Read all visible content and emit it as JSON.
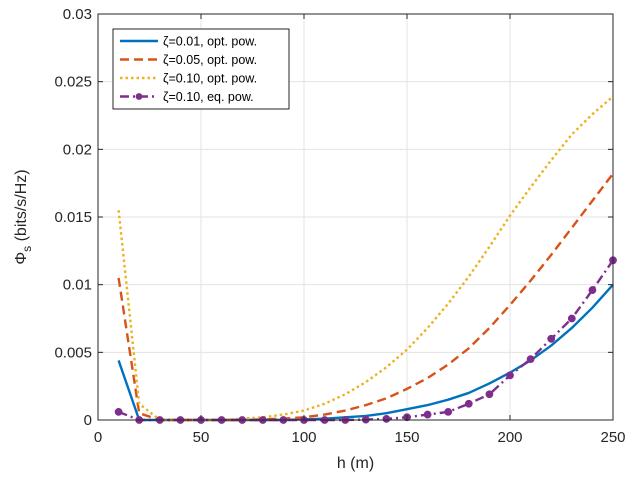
{
  "chart_data": {
    "type": "line",
    "xlabel": "h (m)",
    "ylabel_main": "Φ",
    "ylabel_sub": "s",
    "ylabel_rest": " (bits/s/Hz)",
    "xlim": [
      0,
      250
    ],
    "ylim": [
      0,
      0.03
    ],
    "xticks": [
      0,
      50,
      100,
      150,
      200,
      250
    ],
    "yticks": [
      0,
      0.005,
      0.01,
      0.015,
      0.02,
      0.025,
      0.03
    ],
    "xtick_labels": [
      "0",
      "50",
      "100",
      "150",
      "200",
      "250"
    ],
    "ytick_labels": [
      "0",
      "0.005",
      "0.01",
      "0.015",
      "0.02",
      "0.025",
      "0.03"
    ],
    "grid": true,
    "legend_position": "top-left",
    "x": [
      10,
      20,
      30,
      40,
      50,
      60,
      70,
      80,
      90,
      100,
      110,
      120,
      130,
      140,
      150,
      160,
      170,
      180,
      190,
      200,
      210,
      220,
      230,
      240,
      250
    ],
    "series": [
      {
        "name": "ζ=0.01, opt. pow.",
        "color": "#0072BD",
        "dash": "solid",
        "marker": "none",
        "values": [
          0.0044,
          0.0,
          0.0,
          0.0,
          0.0,
          0.0,
          0.0,
          0.0,
          0.0,
          5e-05,
          0.0001,
          0.0002,
          0.0003,
          0.0005,
          0.0008,
          0.0011,
          0.0015,
          0.002,
          0.0027,
          0.0035,
          0.0044,
          0.0055,
          0.0068,
          0.0083,
          0.01
        ]
      },
      {
        "name": "ζ=0.05, opt. pow.",
        "color": "#D95319",
        "dash": "dashed",
        "marker": "none",
        "values": [
          0.0105,
          0.0005,
          0.0,
          0.0,
          0.0,
          0.0,
          0.0,
          5e-05,
          0.0001,
          0.0002,
          0.0004,
          0.0007,
          0.0011,
          0.0016,
          0.0023,
          0.0031,
          0.0041,
          0.0053,
          0.0068,
          0.0085,
          0.0103,
          0.0122,
          0.0142,
          0.0162,
          0.0182
        ]
      },
      {
        "name": "ζ=0.10, opt. pow.",
        "color": "#EDB120",
        "dash": "dotted",
        "marker": "none",
        "values": [
          0.0155,
          0.0012,
          0.0,
          0.0,
          0.0,
          0.0,
          0.0001,
          0.0002,
          0.0004,
          0.0007,
          0.0012,
          0.0019,
          0.0028,
          0.0039,
          0.0052,
          0.0068,
          0.0086,
          0.0106,
          0.0128,
          0.0151,
          0.0172,
          0.0192,
          0.0211,
          0.0226,
          0.0239
        ]
      },
      {
        "name": "ζ=0.10, eq. pow.",
        "color": "#7E2F8E",
        "dash": "dashdot",
        "marker": "circle",
        "values": [
          0.0006,
          0.0,
          0.0,
          0.0,
          0.0,
          0.0,
          0.0,
          0.0,
          0.0,
          0.0,
          0.0,
          0.0,
          3e-05,
          8e-05,
          0.0002,
          0.0004,
          0.0006,
          0.0012,
          0.0019,
          0.0033,
          0.0045,
          0.006,
          0.0075,
          0.0096,
          0.0118
        ]
      }
    ]
  }
}
